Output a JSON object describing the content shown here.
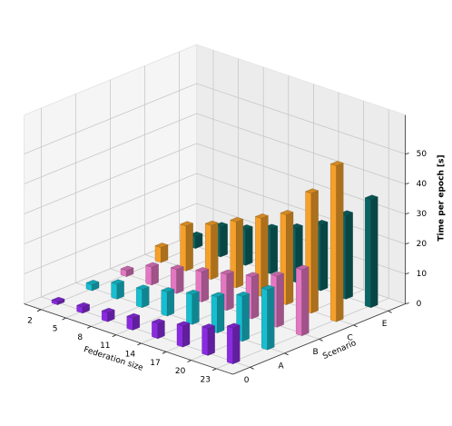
{
  "chart_data": {
    "type": "bar3d",
    "xlabel": "Federation size",
    "ylabel": "Scenario",
    "zlabel": "Time per epoch [s]",
    "x": [
      2,
      5,
      8,
      11,
      14,
      17,
      20,
      23
    ],
    "xlim": [
      0,
      25
    ],
    "xticks": [
      2,
      5,
      8,
      11,
      14,
      17,
      20,
      23
    ],
    "ylim": [
      -0.5,
      4.5
    ],
    "yticks": [
      0,
      {
        "value": 1,
        "label": "A"
      },
      {
        "value": 2,
        "label": "B"
      },
      {
        "value": 3,
        "label": "C"
      },
      {
        "value": 4,
        "label": "E"
      }
    ],
    "zlim": [
      0,
      63
    ],
    "zticks": [
      0,
      10,
      20,
      30,
      40,
      50
    ],
    "grid": true,
    "series": [
      {
        "color": "#8a2be2",
        "values": [
          1,
          2,
          3,
          4,
          5,
          7,
          9,
          12
        ]
      },
      {
        "color": "#17becf",
        "values": [
          2,
          5,
          6,
          8,
          10,
          12,
          15,
          20
        ]
      },
      {
        "color": "#e377c2",
        "values": [
          2,
          6,
          8,
          10,
          12,
          14,
          17,
          22
        ]
      },
      {
        "color": "#f5a02a",
        "values": [
          5,
          15,
          18,
          22,
          26,
          30,
          40,
          52
        ]
      },
      {
        "color": "#0b6464",
        "values": [
          4,
          10,
          12,
          15,
          18,
          22,
          28,
          36
        ]
      }
    ]
  }
}
